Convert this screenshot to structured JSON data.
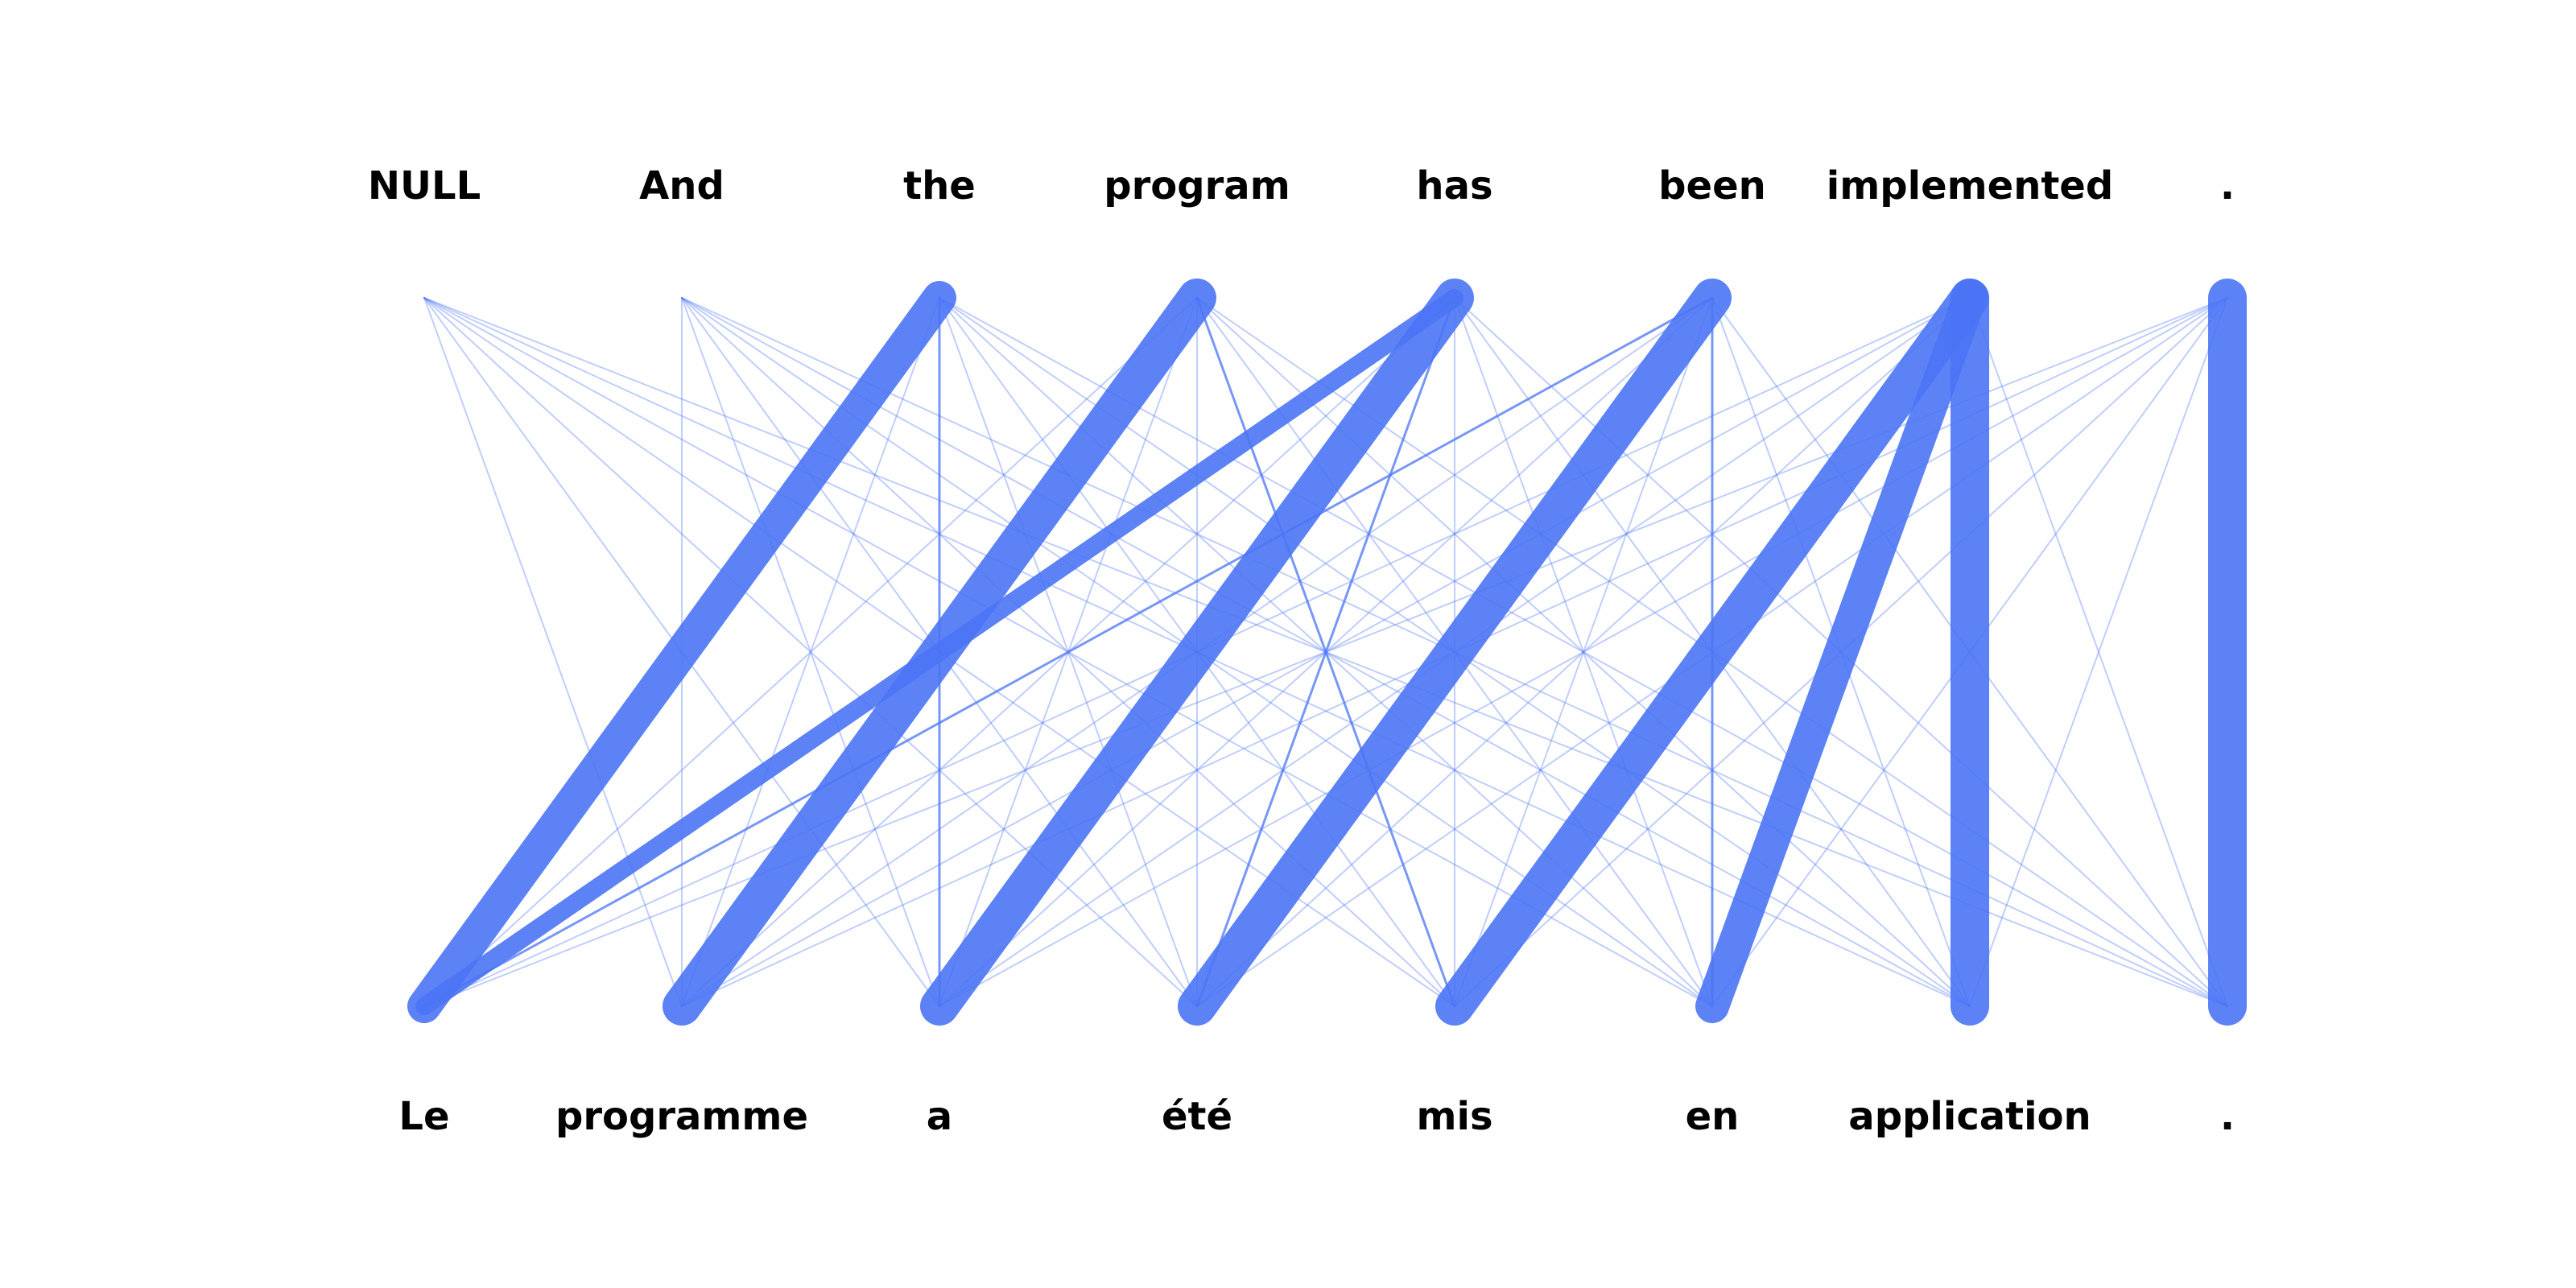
{
  "diagram": {
    "type": "word-alignment",
    "source_words": [
      "NULL",
      "And",
      "the",
      "program",
      "has",
      "been",
      "implemented",
      "."
    ],
    "target_words": [
      "Le",
      "programme",
      "a",
      "été",
      "mis",
      "en",
      "application",
      "."
    ],
    "line_color": "#4a74f5",
    "strong_links": [
      {
        "source": 2,
        "target": 0,
        "strength": 0.85
      },
      {
        "source": 3,
        "target": 1,
        "strength": 1.0
      },
      {
        "source": 4,
        "target": 2,
        "strength": 1.0
      },
      {
        "source": 4,
        "target": 0,
        "strength": 0.35
      },
      {
        "source": 5,
        "target": 3,
        "strength": 1.0
      },
      {
        "source": 6,
        "target": 4,
        "strength": 1.0
      },
      {
        "source": 6,
        "target": 5,
        "strength": 0.85
      },
      {
        "source": 6,
        "target": 6,
        "strength": 1.0
      },
      {
        "source": 7,
        "target": 7,
        "strength": 1.0
      }
    ],
    "medium_links": [
      {
        "source": 5,
        "target": 0
      },
      {
        "source": 4,
        "target": 3
      },
      {
        "source": 3,
        "target": 4
      },
      {
        "source": 2,
        "target": 2
      },
      {
        "source": 5,
        "target": 5
      }
    ]
  }
}
